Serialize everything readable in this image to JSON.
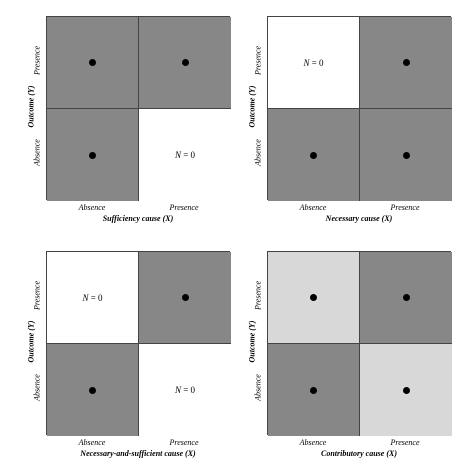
{
  "colors": {
    "dark": "#878787",
    "light": "#d8d8d8",
    "white": "#ffffff"
  },
  "panels": [
    {
      "xlabel": "Sufficiency cause (X)",
      "ylabel": "Outcome (Y)",
      "x_ticks": [
        "Absence",
        "Presence"
      ],
      "y_ticks": [
        "Presence",
        "Absence"
      ],
      "cells": {
        "tl": {
          "shade": "dark",
          "dot": true,
          "text": ""
        },
        "tr": {
          "shade": "dark",
          "dot": true,
          "text": ""
        },
        "bl": {
          "shade": "dark",
          "dot": true,
          "text": ""
        },
        "br": {
          "shade": "white",
          "dot": false,
          "text": "N = 0"
        }
      }
    },
    {
      "xlabel": "Necessary cause (X)",
      "ylabel": "Outcome (Y)",
      "x_ticks": [
        "Absence",
        "Presence"
      ],
      "y_ticks": [
        "Presence",
        "Absence"
      ],
      "cells": {
        "tl": {
          "shade": "white",
          "dot": false,
          "text": "N = 0"
        },
        "tr": {
          "shade": "dark",
          "dot": true,
          "text": ""
        },
        "bl": {
          "shade": "dark",
          "dot": true,
          "text": ""
        },
        "br": {
          "shade": "dark",
          "dot": true,
          "text": ""
        }
      }
    },
    {
      "xlabel": "Necessary-and-sufficient cause (X)",
      "ylabel": "Outcome (Y)",
      "x_ticks": [
        "Absence",
        "Presence"
      ],
      "y_ticks": [
        "Presence",
        "Absence"
      ],
      "cells": {
        "tl": {
          "shade": "white",
          "dot": false,
          "text": "N = 0"
        },
        "tr": {
          "shade": "dark",
          "dot": true,
          "text": ""
        },
        "bl": {
          "shade": "dark",
          "dot": true,
          "text": ""
        },
        "br": {
          "shade": "white",
          "dot": false,
          "text": "N = 0"
        }
      }
    },
    {
      "xlabel": "Contributory cause (X)",
      "ylabel": "Outcome (Y)",
      "x_ticks": [
        "Absence",
        "Presence"
      ],
      "y_ticks": [
        "Presence",
        "Absence"
      ],
      "cells": {
        "tl": {
          "shade": "light",
          "dot": true,
          "text": ""
        },
        "tr": {
          "shade": "dark",
          "dot": true,
          "text": ""
        },
        "bl": {
          "shade": "dark",
          "dot": true,
          "text": ""
        },
        "br": {
          "shade": "light",
          "dot": true,
          "text": ""
        }
      }
    }
  ]
}
